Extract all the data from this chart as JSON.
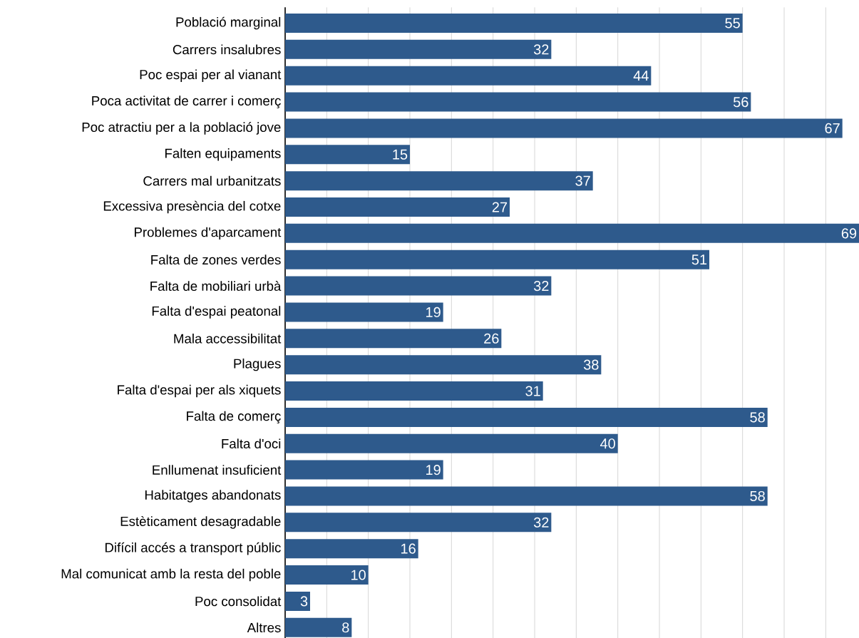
{
  "chart_data": {
    "type": "bar",
    "orientation": "horizontal",
    "categories": [
      "Població marginal",
      "Carrers insalubres",
      "Poc espai per al vianant",
      "Poca activitat de carrer i comerç",
      "Poc atractiu per a la població jove",
      "Falten equipaments",
      "Carrers mal urbanitzats",
      "Excessiva presència del cotxe",
      "Problemes d'aparcament",
      "Falta de zones verdes",
      "Falta de mobiliari urbà",
      "Falta d'espai peatonal",
      "Mala accessibilitat",
      "Plagues",
      "Falta d'espai per als xiquets",
      "Falta de comerç",
      "Falta d'oci",
      "Enllumenat insuficient",
      "Habitatges abandonats",
      "Estèticament desagradable",
      "Difícil accés a transport públic",
      "Mal comunicat amb la resta del poble",
      "Poc consolidat",
      "Altres"
    ],
    "values": [
      55,
      32,
      44,
      56,
      67,
      15,
      37,
      27,
      69,
      51,
      32,
      19,
      26,
      38,
      31,
      58,
      40,
      19,
      58,
      32,
      16,
      10,
      3,
      8
    ],
    "color": "#2e5a8c",
    "xlim": [
      0,
      69
    ],
    "grid": "x",
    "data_labels": true,
    "tick_labels": "y"
  }
}
